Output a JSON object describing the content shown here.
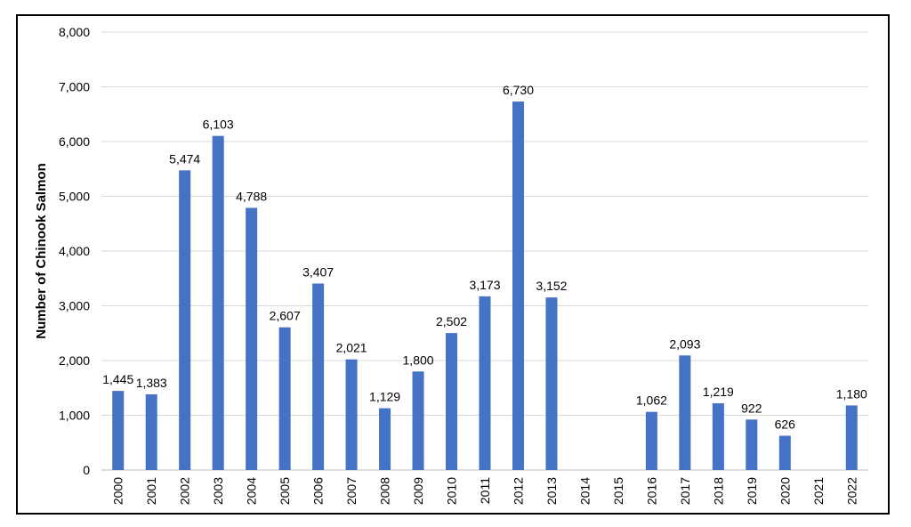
{
  "chart_data": {
    "type": "bar",
    "title": "",
    "xlabel": "",
    "ylabel": "Number of Chinook Salmon",
    "ylim": [
      0,
      8000
    ],
    "yticks": [
      0,
      1000,
      2000,
      3000,
      4000,
      5000,
      6000,
      7000,
      8000
    ],
    "ytick_labels": [
      "0",
      "1,000",
      "2,000",
      "3,000",
      "4,000",
      "5,000",
      "6,000",
      "7,000",
      "8,000"
    ],
    "grid": true,
    "legend": "none",
    "bar_color": "#4472c4",
    "categories": [
      "2000",
      "2001",
      "2002",
      "2003",
      "2004",
      "2005",
      "2006",
      "2007",
      "2008",
      "2009",
      "2010",
      "2011",
      "2012",
      "2013",
      "2014",
      "2015",
      "2016",
      "2017",
      "2018",
      "2019",
      "2020",
      "2021",
      "2022"
    ],
    "values": [
      1445,
      1383,
      5474,
      6103,
      4788,
      2607,
      3407,
      2021,
      1129,
      1800,
      2502,
      3173,
      6730,
      3152,
      null,
      null,
      1062,
      2093,
      1219,
      922,
      626,
      null,
      1180
    ],
    "data_labels": [
      "1,445",
      "1,383",
      "5,474",
      "6,103",
      "4,788",
      "2,607",
      "3,407",
      "2,021",
      "1,129",
      "1,800",
      "2,502",
      "3,173",
      "6,730",
      "3,152",
      "",
      "",
      "1,062",
      "2,093",
      "1,219",
      "922",
      "626",
      "",
      "1,180"
    ]
  }
}
